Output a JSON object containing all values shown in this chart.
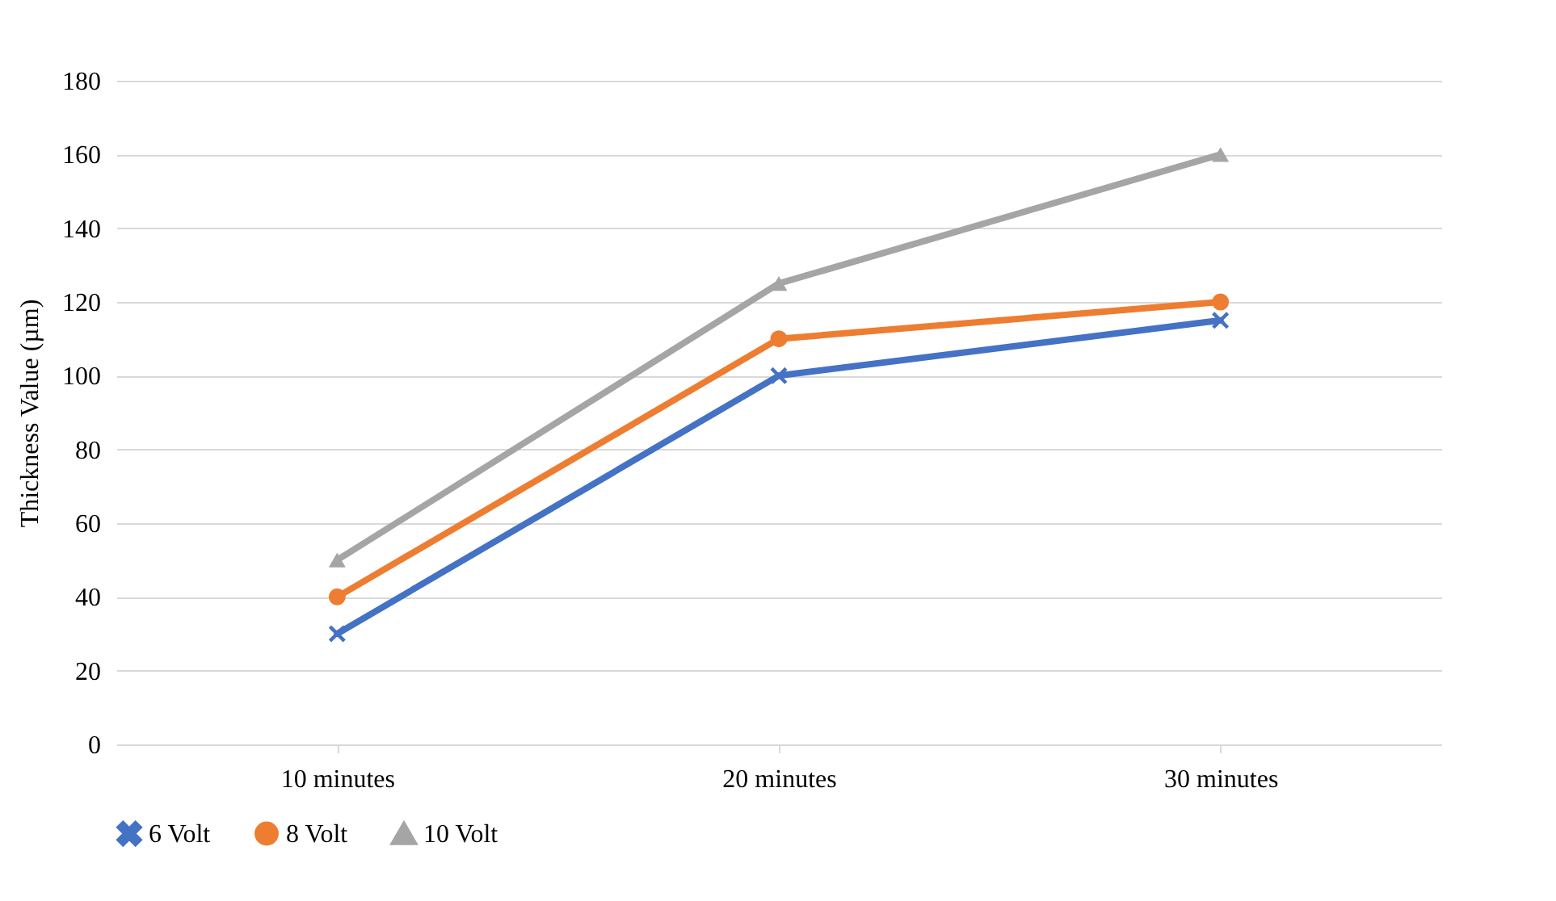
{
  "chart_data": {
    "type": "line",
    "ylabel": "Thickness Value  (µm)",
    "categories": [
      "10 minutes",
      "20 minutes",
      "30 minutes"
    ],
    "series": [
      {
        "name": "6 Volt",
        "color": "#4472c4",
        "marker": "cross",
        "values": [
          30,
          100,
          115
        ]
      },
      {
        "name": "8 Volt",
        "color": "#ed7d31",
        "marker": "circle",
        "values": [
          40,
          110,
          120
        ]
      },
      {
        "name": "10 Volt",
        "color": "#a5a5a5",
        "marker": "triangle",
        "values": [
          50,
          125,
          160
        ]
      }
    ],
    "ylim": [
      0,
      180
    ],
    "yticks": [
      0,
      20,
      40,
      60,
      80,
      100,
      120,
      140,
      160,
      180
    ],
    "grid": "y",
    "legend": "bottom"
  }
}
